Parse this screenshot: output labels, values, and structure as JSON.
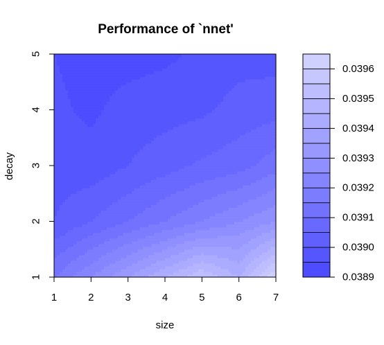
{
  "chart_data": {
    "type": "heatmap",
    "title": "Performance of `nnet'",
    "xlabel": "size",
    "ylabel": "decay",
    "x_ticks": [
      "1",
      "2",
      "3",
      "4",
      "5",
      "6",
      "7"
    ],
    "y_ticks": [
      "1",
      "2",
      "3",
      "4",
      "5"
    ],
    "xlim": [
      1,
      7
    ],
    "ylim": [
      1,
      5
    ],
    "colorbar": {
      "tick_labels": [
        "0.0389",
        "0.0390",
        "0.0391",
        "0.0392",
        "0.0393",
        "0.0394",
        "0.0395",
        "0.0396"
      ],
      "tick_values": [
        0.0389,
        0.039,
        0.0391,
        0.0392,
        0.0393,
        0.0394,
        0.0395,
        0.0396
      ],
      "range": [
        0.0389,
        0.03965
      ],
      "low_color": "#4d4dff",
      "high_color": "#d0d0ff"
    },
    "contour_levels": [
      0.0389,
      0.03895,
      0.039,
      0.03905,
      0.0391,
      0.03915,
      0.0392,
      0.03925,
      0.0393,
      0.03935,
      0.0394,
      0.03945,
      0.0395,
      0.03955,
      0.0396,
      0.03965
    ],
    "x": [
      1,
      2,
      3,
      4,
      5,
      6,
      7
    ],
    "y": [
      1,
      2,
      3,
      4,
      5
    ],
    "z": [
      [
        0.03915,
        0.03925,
        0.03935,
        0.03945,
        0.03955,
        0.03945,
        0.03965
      ],
      [
        0.039,
        0.03905,
        0.0391,
        0.03915,
        0.0392,
        0.03925,
        0.0393
      ],
      [
        0.03898,
        0.03897,
        0.039,
        0.03903,
        0.03906,
        0.03908,
        0.03913
      ],
      [
        0.03896,
        0.03894,
        0.03897,
        0.03898,
        0.03899,
        0.03902,
        0.03903
      ],
      [
        0.03895,
        0.03893,
        0.03893,
        0.03894,
        0.03896,
        0.03898,
        0.03898
      ]
    ]
  }
}
